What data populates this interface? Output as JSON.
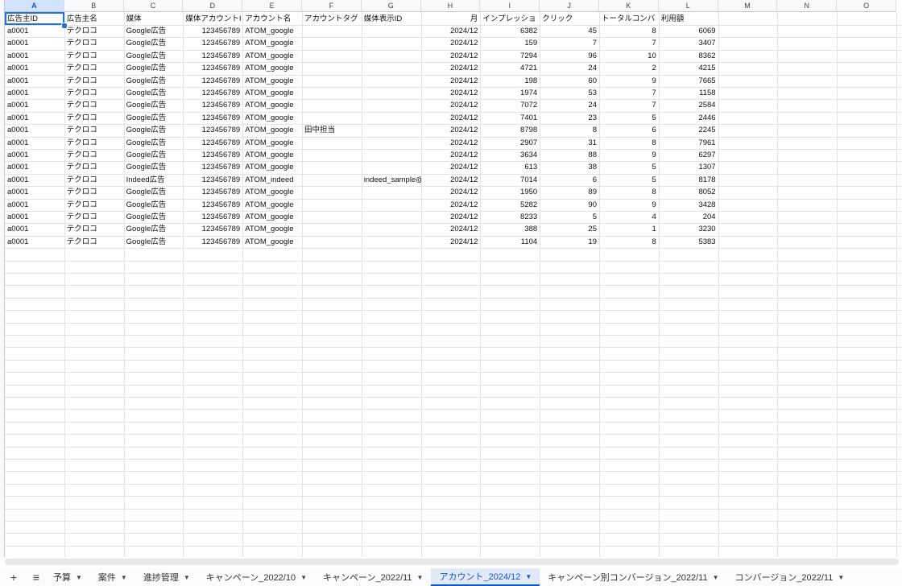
{
  "table": {
    "columns": [
      "A",
      "B",
      "C",
      "D",
      "E",
      "F",
      "G",
      "H",
      "I",
      "J",
      "K",
      "L",
      "M",
      "N",
      "O"
    ],
    "header": [
      "広告主ID",
      "広告主名",
      "媒体",
      "媒体アカウントI",
      "アカウント名",
      "アカウントタグ",
      "媒体表示ID",
      "月",
      "インプレッショ",
      "クリック",
      "トータルコンバ",
      "利用額"
    ],
    "rows": [
      [
        "a0001",
        "テクロコ",
        "Google広告",
        123456789,
        "ATOM_google",
        null,
        null,
        "2024/12",
        6382,
        45,
        8,
        6069
      ],
      [
        "a0001",
        "テクロコ",
        "Google広告",
        123456789,
        "ATOM_google",
        null,
        null,
        "2024/12",
        159,
        7,
        7,
        3407
      ],
      [
        "a0001",
        "テクロコ",
        "Google広告",
        123456789,
        "ATOM_google",
        null,
        null,
        "2024/12",
        7294,
        96,
        10,
        8362
      ],
      [
        "a0001",
        "テクロコ",
        "Google広告",
        123456789,
        "ATOM_google",
        null,
        null,
        "2024/12",
        4721,
        24,
        2,
        4215
      ],
      [
        "a0001",
        "テクロコ",
        "Google広告",
        123456789,
        "ATOM_google",
        null,
        null,
        "2024/12",
        198,
        60,
        9,
        7665
      ],
      [
        "a0001",
        "テクロコ",
        "Google広告",
        123456789,
        "ATOM_google",
        null,
        null,
        "2024/12",
        1974,
        53,
        7,
        1158
      ],
      [
        "a0001",
        "テクロコ",
        "Google広告",
        123456789,
        "ATOM_google",
        null,
        null,
        "2024/12",
        7072,
        24,
        7,
        2584
      ],
      [
        "a0001",
        "テクロコ",
        "Google広告",
        123456789,
        "ATOM_google",
        null,
        null,
        "2024/12",
        7401,
        23,
        5,
        2446
      ],
      [
        "a0001",
        "テクロコ",
        "Google広告",
        123456789,
        "ATOM_google",
        "田中担当",
        null,
        "2024/12",
        8798,
        8,
        6,
        2245
      ],
      [
        "a0001",
        "テクロコ",
        "Google広告",
        123456789,
        "ATOM_google",
        null,
        null,
        "2024/12",
        2907,
        31,
        8,
        7961
      ],
      [
        "a0001",
        "テクロコ",
        "Google広告",
        123456789,
        "ATOM_google",
        null,
        null,
        "2024/12",
        3634,
        88,
        9,
        6297
      ],
      [
        "a0001",
        "テクロコ",
        "Google広告",
        123456789,
        "ATOM_google",
        null,
        null,
        "2024/12",
        613,
        38,
        5,
        1307
      ],
      [
        "a0001",
        "テクロコ",
        "Indeed広告",
        123456789,
        "ATOM_indeed",
        null,
        "indeed_sample@",
        "2024/12",
        7014,
        6,
        5,
        8178
      ],
      [
        "a0001",
        "テクロコ",
        "Google広告",
        123456789,
        "ATOM_google",
        null,
        null,
        "2024/12",
        1950,
        89,
        8,
        8052
      ],
      [
        "a0001",
        "テクロコ",
        "Google広告",
        123456789,
        "ATOM_google",
        null,
        null,
        "2024/12",
        5282,
        90,
        9,
        3428
      ],
      [
        "a0001",
        "テクロコ",
        "Google広告",
        123456789,
        "ATOM_google",
        null,
        null,
        "2024/12",
        8233,
        5,
        4,
        204
      ],
      [
        "a0001",
        "テクロコ",
        "Google広告",
        123456789,
        "ATOM_google",
        null,
        null,
        "2024/12",
        388,
        25,
        1,
        3230
      ],
      [
        "a0001",
        "テクロコ",
        "Google広告",
        123456789,
        "ATOM_google",
        null,
        null,
        "2024/12",
        1104,
        19,
        8,
        5383
      ]
    ]
  },
  "tabs": [
    "予算",
    "案件",
    "進捗管理",
    "キャンペーン_2022/10",
    "キャンペーン_2022/11",
    "アカウント_2024/12",
    "キャンペーン別コンバージョン_2022/11",
    "コンバージョン_2022/11"
  ],
  "active_tab": 5
}
